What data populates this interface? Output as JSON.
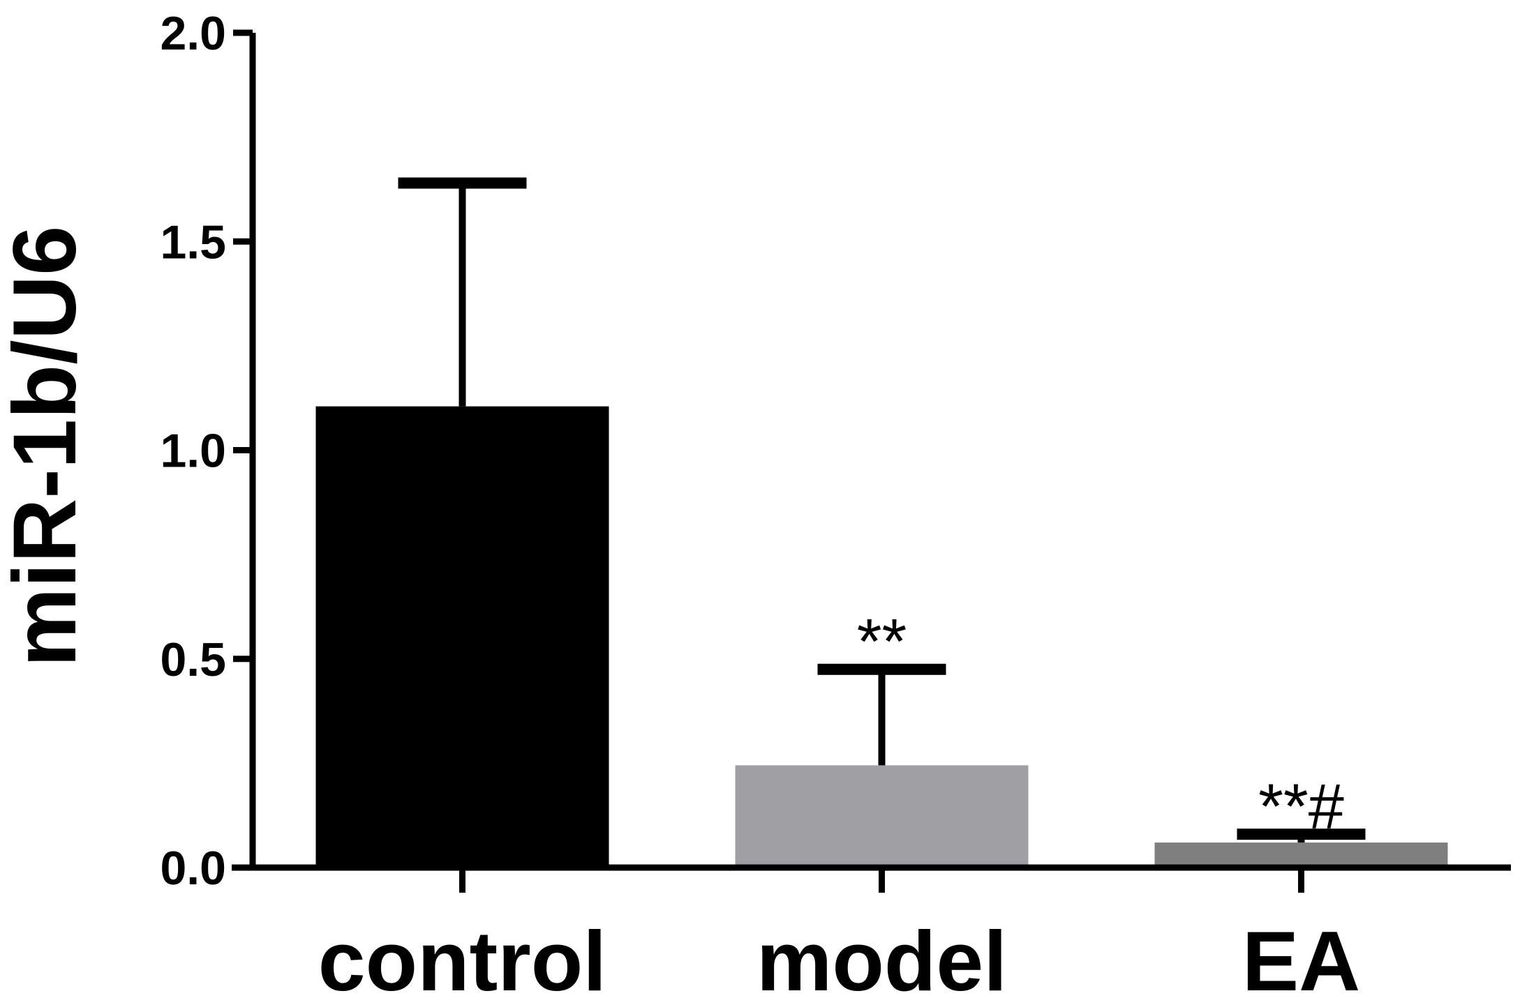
{
  "chart_data": {
    "type": "bar",
    "categories": [
      "control",
      "model",
      "EA"
    ],
    "values": [
      1.105,
      0.245,
      0.06
    ],
    "errors": [
      0.535,
      0.23,
      0.02
    ],
    "annotations": [
      "",
      "**",
      "**#"
    ],
    "bar_colors": [
      "#000000",
      "#a0a0a4",
      "#7f7f7f"
    ],
    "ylabel": "miR-1b/U6",
    "xlabel": "",
    "title": "",
    "ylim": [
      0,
      2.0
    ],
    "yticks": [
      0.0,
      0.5,
      1.0,
      1.5,
      2.0
    ],
    "ytick_labels": [
      "0.0",
      "0.5",
      "1.0",
      "1.5",
      "2.0"
    ],
    "grid": false
  }
}
